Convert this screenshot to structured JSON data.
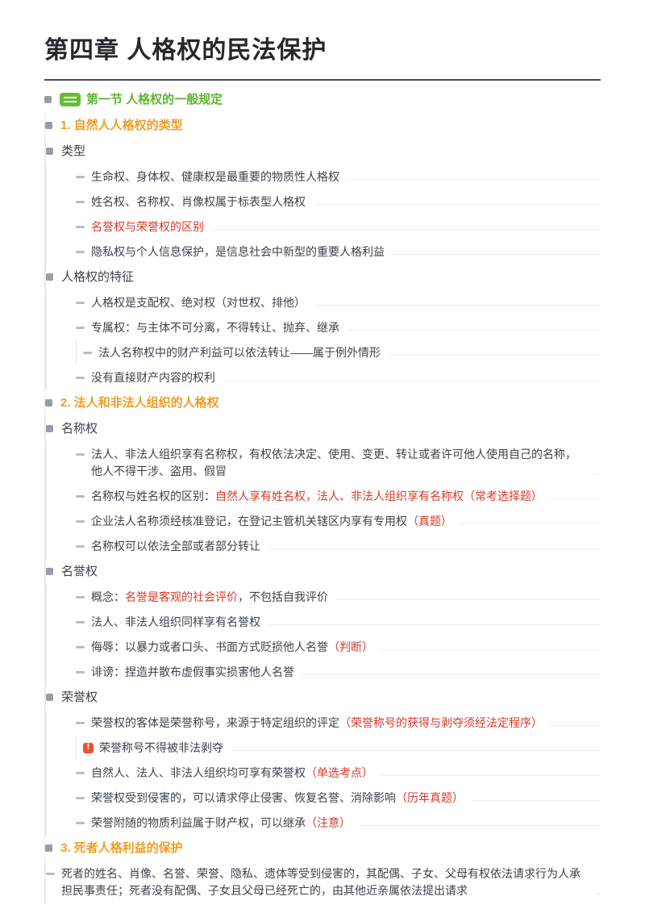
{
  "title": "第四章 人格权的民法保护",
  "colors": {
    "green_accent": "#5fb52f",
    "orange_accent": "#f39c1f",
    "red_accent": "#d93a2b",
    "body_text": "#3d434b",
    "guide_line": "#e9e9e9",
    "title_rule": "#4a4d52"
  },
  "icons": {
    "root_badge": "green-tag-icon",
    "note_marker": "red-alert-icon",
    "branch_bullet": "square-bullet-icon",
    "leaf_bullet": "dash-bullet-icon"
  },
  "nodes": {
    "root": {
      "label": "第一节 人格权的一般规定"
    },
    "s1": {
      "t1": "1. 自然人人格权的类型"
    },
    "h_type": {
      "t1": "类型"
    },
    "a1": {
      "t1": "生命权、身体权、健康权是最重要的物质性人格权"
    },
    "a2": {
      "t1": "姓名权、名称权、肖像权属于标表型人格权"
    },
    "a3": {
      "r": "名誉权与荣誉权的区别"
    },
    "a4": {
      "t1": "隐私权与个人信息保护，是信息社会中新型的重要人格利益"
    },
    "h_feat": {
      "t1": "人格权的特征"
    },
    "b1": {
      "t1": "人格权是支配权、绝对权（对世权、排他）"
    },
    "b2": {
      "t1": "专属权：与主体不可分离，不得转让、抛弃、继承"
    },
    "b2a": {
      "t1": "法人名称权中的财产利益可以依法转让——属于例外情形"
    },
    "b3": {
      "t1": "没有直接财产内容的权利"
    },
    "s2": {
      "t1": "2. 法人和非法人组织的人格权"
    },
    "h_name": {
      "t1": "名称权"
    },
    "c1": {
      "t1": "法人、非法人组织享有名称权，有权依法决定、使用、变更、转让或者许可他人使用自己的名称，他人不得干涉、盗用、假冒"
    },
    "c2": {
      "t1": "名称权与姓名权的区别：",
      "r": "自然人享有姓名权，法人、非法人组织享有名称权（常考选择题）"
    },
    "c3": {
      "t1": "企业法人名称须经核准登记，在登记主管机关辖区内享有专用权",
      "r": "（真题）"
    },
    "c4": {
      "t1": "名称权可以依法全部或者部分转让"
    },
    "h_rep": {
      "t1": "名誉权"
    },
    "d1": {
      "t1": "概念：",
      "r": "名誉是客观的社会评价",
      "t2": "，不包括自我评价"
    },
    "d2": {
      "t1": "法人、非法人组织同样享有名誉权"
    },
    "d3": {
      "t1": "侮辱：以暴力或者口头、书面方式贬损他人名誉",
      "r": "（判断）"
    },
    "d4": {
      "t1": "诽谤：捏造并散布虚假事实损害他人名誉"
    },
    "h_hon": {
      "t1": "荣誉权"
    },
    "e1": {
      "t1": "荣誉权的客体是荣誉称号，来源于特定组织的评定",
      "r": "（荣誉称号的获得与剥夺须经法定程序）"
    },
    "e1a": {
      "t1": "荣誉称号不得被非法剥夺"
    },
    "e2": {
      "t1": "自然人、法人、非法人组织均可享有荣誉权",
      "r": "（单选考点）"
    },
    "e3": {
      "t1": "荣誉权受到侵害的，可以请求停止侵害、恢复名誉、消除影响",
      "r": "（历年真题）"
    },
    "e4": {
      "t1": "荣誉附随的物质利益属于财产权，可以继承",
      "r": "（注意）"
    },
    "s3": {
      "t1": "3. 死者人格利益的保护"
    },
    "f1": {
      "t1": "死者的姓名、肖像、名誉、荣誉、隐私、遗体等受到侵害的，其配偶、子女、父母有权依法请求行为人承担民事责任；死者没有配偶、子女且父母已经死亡的，由其他近亲属依法提出请求"
    }
  }
}
